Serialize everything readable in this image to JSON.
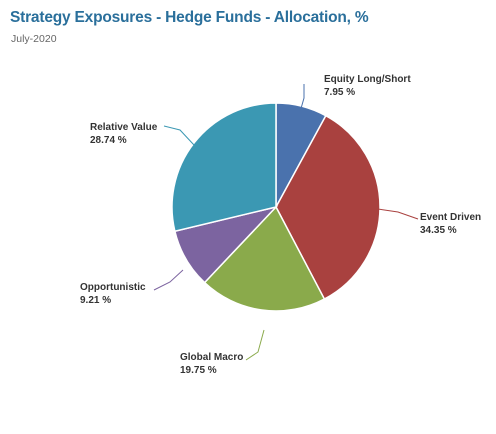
{
  "header": {
    "title": "Strategy Exposures - Hedge Funds - Allocation, %",
    "subtitle": "July-2020"
  },
  "chart_data": {
    "type": "pie",
    "title": "Strategy Exposures - Hedge Funds - Allocation, %",
    "subtitle": "July-2020",
    "slices": [
      {
        "name": "Equity Long/Short",
        "value": 7.95,
        "label": "7.95 %",
        "color": "#4a72ad"
      },
      {
        "name": "Event Driven",
        "value": 34.35,
        "label": "34.35 %",
        "color": "#a9413f"
      },
      {
        "name": "Global Macro",
        "value": 19.75,
        "label": "19.75 %",
        "color": "#8aaa4b"
      },
      {
        "name": "Opportunistic",
        "value": 9.21,
        "label": "9.21 %",
        "color": "#7c64a0"
      },
      {
        "name": "Relative Value",
        "value": 28.74,
        "label": "28.74 %",
        "color": "#3b98b3"
      }
    ]
  }
}
